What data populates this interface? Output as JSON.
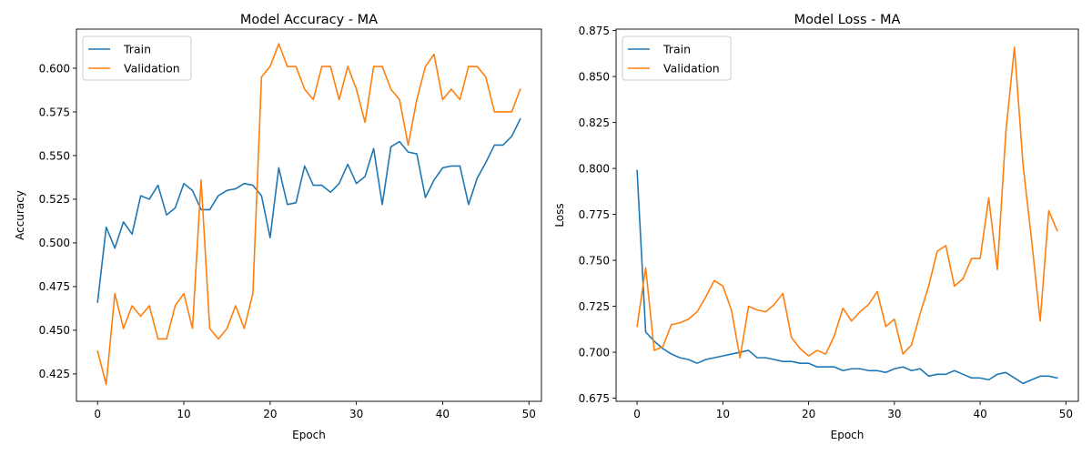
{
  "chart_data": [
    {
      "type": "line",
      "title": "Model Accuracy - MA",
      "xlabel": "Epoch",
      "ylabel": "Accuracy",
      "xlim": [
        -2.45,
        51.45
      ],
      "ylim": [
        0.4093,
        0.6224
      ],
      "xticks": [
        0,
        10,
        20,
        30,
        40,
        50
      ],
      "yticks": [
        0.425,
        0.45,
        0.475,
        0.5,
        0.525,
        0.55,
        0.575,
        0.6
      ],
      "ytick_labels": [
        "0.425",
        "0.450",
        "0.475",
        "0.500",
        "0.525",
        "0.550",
        "0.575",
        "0.600"
      ],
      "legend": "top-left",
      "series": [
        {
          "name": "Train",
          "color": "#1f77b4",
          "x": [
            0,
            1,
            2,
            3,
            4,
            5,
            6,
            7,
            8,
            9,
            10,
            11,
            12,
            13,
            14,
            15,
            16,
            17,
            18,
            19,
            20,
            21,
            22,
            23,
            24,
            25,
            26,
            27,
            28,
            29,
            30,
            31,
            32,
            33,
            34,
            35,
            36,
            37,
            38,
            39,
            40,
            41,
            42,
            43,
            44,
            45,
            46,
            47,
            48,
            49
          ],
          "values": [
            0.466,
            0.509,
            0.497,
            0.512,
            0.505,
            0.527,
            0.525,
            0.533,
            0.516,
            0.52,
            0.534,
            0.53,
            0.519,
            0.519,
            0.527,
            0.53,
            0.531,
            0.534,
            0.533,
            0.527,
            0.503,
            0.543,
            0.522,
            0.523,
            0.544,
            0.533,
            0.533,
            0.529,
            0.534,
            0.545,
            0.534,
            0.538,
            0.554,
            0.522,
            0.555,
            0.558,
            0.552,
            0.551,
            0.526,
            0.536,
            0.543,
            0.544,
            0.544,
            0.522,
            0.537,
            0.546,
            0.556,
            0.556,
            0.561,
            0.571
          ]
        },
        {
          "name": "Validation",
          "color": "#ff7f0e",
          "x": [
            0,
            1,
            2,
            3,
            4,
            5,
            6,
            7,
            8,
            9,
            10,
            11,
            12,
            13,
            14,
            15,
            16,
            17,
            18,
            19,
            20,
            21,
            22,
            23,
            24,
            25,
            26,
            27,
            28,
            29,
            30,
            31,
            32,
            33,
            34,
            35,
            36,
            37,
            38,
            39,
            40,
            41,
            42,
            43,
            44,
            45,
            46,
            47,
            48,
            49
          ],
          "values": [
            0.438,
            0.419,
            0.471,
            0.451,
            0.464,
            0.458,
            0.464,
            0.445,
            0.445,
            0.464,
            0.471,
            0.451,
            0.536,
            0.451,
            0.445,
            0.451,
            0.464,
            0.451,
            0.471,
            0.595,
            0.601,
            0.614,
            0.601,
            0.601,
            0.588,
            0.582,
            0.601,
            0.601,
            0.582,
            0.601,
            0.588,
            0.569,
            0.601,
            0.601,
            0.588,
            0.582,
            0.556,
            0.582,
            0.601,
            0.608,
            0.582,
            0.588,
            0.582,
            0.601,
            0.601,
            0.595,
            0.575,
            0.575,
            0.575,
            0.588
          ]
        }
      ]
    },
    {
      "type": "line",
      "title": "Model Loss - MA",
      "xlabel": "Epoch",
      "ylabel": "Loss",
      "xlim": [
        -2.45,
        51.45
      ],
      "ylim": [
        0.6733,
        0.8758
      ],
      "xticks": [
        0,
        10,
        20,
        30,
        40,
        50
      ],
      "yticks": [
        0.675,
        0.7,
        0.725,
        0.75,
        0.775,
        0.8,
        0.825,
        0.85,
        0.875
      ],
      "ytick_labels": [
        "0.675",
        "0.700",
        "0.725",
        "0.750",
        "0.775",
        "0.800",
        "0.825",
        "0.850",
        "0.875"
      ],
      "legend": "top-left",
      "series": [
        {
          "name": "Train",
          "color": "#1f77b4",
          "x": [
            0,
            1,
            2,
            3,
            4,
            5,
            6,
            7,
            8,
            9,
            10,
            11,
            12,
            13,
            14,
            15,
            16,
            17,
            18,
            19,
            20,
            21,
            22,
            23,
            24,
            25,
            26,
            27,
            28,
            29,
            30,
            31,
            32,
            33,
            34,
            35,
            36,
            37,
            38,
            39,
            40,
            41,
            42,
            43,
            44,
            45,
            46,
            47,
            48,
            49
          ],
          "values": [
            0.799,
            0.711,
            0.706,
            0.702,
            0.699,
            0.697,
            0.696,
            0.694,
            0.696,
            0.697,
            0.698,
            0.699,
            0.7,
            0.701,
            0.697,
            0.697,
            0.696,
            0.695,
            0.695,
            0.694,
            0.694,
            0.692,
            0.692,
            0.692,
            0.69,
            0.691,
            0.691,
            0.69,
            0.69,
            0.689,
            0.691,
            0.692,
            0.69,
            0.691,
            0.687,
            0.688,
            0.688,
            0.69,
            0.688,
            0.686,
            0.686,
            0.685,
            0.688,
            0.689,
            0.686,
            0.683,
            0.685,
            0.687,
            0.687,
            0.686
          ]
        },
        {
          "name": "Validation",
          "color": "#ff7f0e",
          "x": [
            0,
            1,
            2,
            3,
            4,
            5,
            6,
            7,
            8,
            9,
            10,
            11,
            12,
            13,
            14,
            15,
            16,
            17,
            18,
            19,
            20,
            21,
            22,
            23,
            24,
            25,
            26,
            27,
            28,
            29,
            30,
            31,
            32,
            33,
            34,
            35,
            36,
            37,
            38,
            39,
            40,
            41,
            42,
            43,
            44,
            45,
            46,
            47,
            48,
            49
          ],
          "values": [
            0.714,
            0.746,
            0.701,
            0.703,
            0.715,
            0.716,
            0.718,
            0.722,
            0.73,
            0.739,
            0.736,
            0.723,
            0.697,
            0.725,
            0.723,
            0.722,
            0.726,
            0.732,
            0.708,
            0.702,
            0.698,
            0.701,
            0.699,
            0.709,
            0.724,
            0.717,
            0.722,
            0.726,
            0.733,
            0.714,
            0.718,
            0.699,
            0.704,
            0.721,
            0.736,
            0.755,
            0.758,
            0.736,
            0.74,
            0.751,
            0.751,
            0.784,
            0.745,
            0.82,
            0.866,
            0.802,
            0.761,
            0.717,
            0.777,
            0.766
          ]
        }
      ]
    }
  ]
}
